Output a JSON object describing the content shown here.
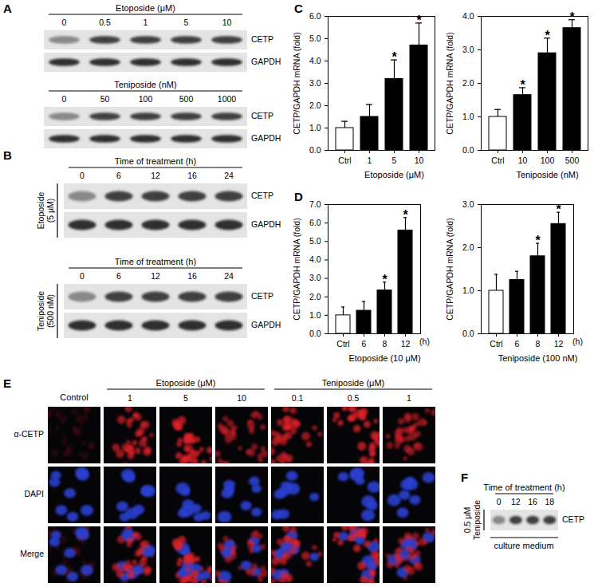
{
  "figure": {
    "A": {
      "letter": "A",
      "blots": [
        {
          "treatment": "Etoposide (μM)",
          "lanes": [
            "0",
            "0.5",
            "1",
            "5",
            "10"
          ],
          "rows": [
            "CETP",
            "GAPDH"
          ]
        },
        {
          "treatment": "Teniposide (nM)",
          "lanes": [
            "0",
            "50",
            "100",
            "500",
            "1000"
          ],
          "rows": [
            "CETP",
            "GAPDH"
          ]
        }
      ]
    },
    "B": {
      "letter": "B",
      "blots": [
        {
          "header": "Time of treatment (h)",
          "treatment": [
            "Etoposide",
            "(5 μM)"
          ],
          "lanes": [
            "0",
            "6",
            "12",
            "16",
            "24"
          ],
          "rows": [
            "CETP",
            "GAPDH"
          ]
        },
        {
          "header": "Time of treatment (h)",
          "treatment": [
            "Teniposide",
            "(500 nM)"
          ],
          "lanes": [
            "0",
            "6",
            "12",
            "16",
            "24"
          ],
          "rows": [
            "CETP",
            "GAPDH"
          ]
        }
      ]
    },
    "E": {
      "letter": "E",
      "control": "Control",
      "groups": [
        {
          "treatment": "Etoposide (μM)",
          "doses": [
            "1",
            "5",
            "10"
          ]
        },
        {
          "treatment": "Teniposide (μM)",
          "doses": [
            "0.1",
            "0.5",
            "1"
          ]
        }
      ],
      "rows": [
        "α-CETP",
        "DAPI",
        "Merge"
      ]
    },
    "F": {
      "letter": "F",
      "header": "Time of treatment (h)",
      "treatment": [
        "0.5 μM",
        "Teniposide"
      ],
      "lanes": [
        "0",
        "12",
        "16",
        "18"
      ],
      "rows": [
        "CETP"
      ],
      "footer": "culture medium"
    }
  },
  "chart_data": [
    {
      "panel": "C",
      "type": "bar",
      "ylabel": "CETP/GAPDH mRNA (fold)",
      "categories": [
        "Ctrl",
        "1",
        "5",
        "10"
      ],
      "values": [
        1.0,
        1.5,
        3.2,
        4.7
      ],
      "errors": [
        0.3,
        0.55,
        0.85,
        1.0
      ],
      "colors": [
        "#ffffff",
        "#000000",
        "#000000",
        "#000000"
      ],
      "annotations": [
        null,
        null,
        "*",
        "*"
      ],
      "group_label": "Etoposide (μM)",
      "ylim": [
        0,
        6
      ],
      "yticks": [
        0,
        1,
        2,
        3,
        4,
        5,
        6
      ]
    },
    {
      "type": "bar",
      "ylabel": "CETP/GAPDH mRNA (fold)",
      "categories": [
        "Ctrl",
        "10",
        "100",
        "500"
      ],
      "values": [
        1.0,
        1.65,
        2.9,
        3.65
      ],
      "errors": [
        0.22,
        0.22,
        0.45,
        0.25
      ],
      "colors": [
        "#ffffff",
        "#000000",
        "#000000",
        "#000000"
      ],
      "annotations": [
        null,
        "*",
        "*",
        "*"
      ],
      "group_label": "Teniposide (nM)",
      "ylim": [
        0,
        4
      ],
      "yticks": [
        0,
        1,
        2,
        3,
        4
      ]
    },
    {
      "panel": "D",
      "type": "bar",
      "ylabel": "CETP/GAPDH mRNA (fold)",
      "categories": [
        "Ctrl",
        "6",
        "8",
        "12"
      ],
      "values": [
        1.0,
        1.25,
        2.35,
        5.6
      ],
      "errors": [
        0.45,
        0.5,
        0.45,
        0.7
      ],
      "colors": [
        "#ffffff",
        "#000000",
        "#000000",
        "#000000"
      ],
      "annotations": [
        null,
        null,
        "*",
        "*"
      ],
      "group_label": "Etoposide (10 μM)",
      "x_unit": "(h)",
      "ylim": [
        0,
        7
      ],
      "yticks": [
        0,
        1,
        2,
        3,
        4,
        5,
        6,
        7
      ]
    },
    {
      "type": "bar",
      "ylabel": "CETP/GAPDH mRNA (fold)",
      "categories": [
        "Ctrl",
        "6",
        "8",
        "12"
      ],
      "values": [
        1.0,
        1.25,
        1.8,
        2.55
      ],
      "errors": [
        0.38,
        0.2,
        0.3,
        0.27
      ],
      "colors": [
        "#ffffff",
        "#000000",
        "#000000",
        "#000000"
      ],
      "annotations": [
        null,
        null,
        "*",
        "*"
      ],
      "group_label": "Teniposide (100 nM)",
      "x_unit": "(h)",
      "ylim": [
        0,
        3
      ],
      "yticks": [
        0,
        1,
        2,
        3
      ]
    }
  ]
}
